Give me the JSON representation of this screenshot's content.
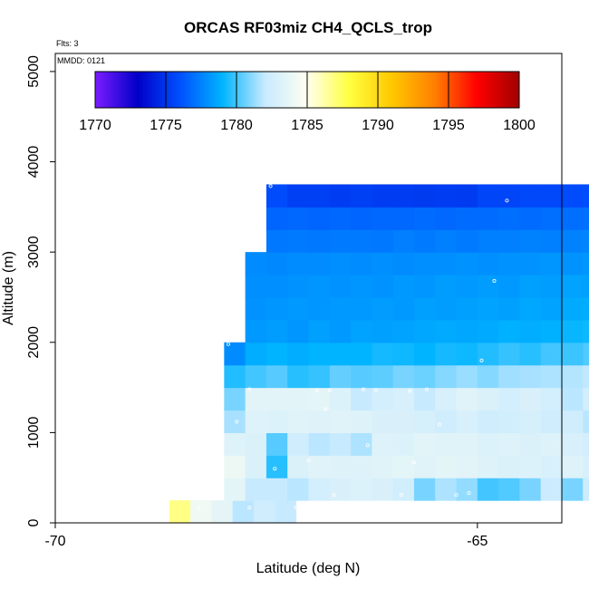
{
  "chart_data": {
    "type": "heatmap",
    "title": "ORCAS RF03miz CH4_QCLS_trop",
    "subtitle": "Flts: 3",
    "inset_label": "MMDD: 0121",
    "xlabel": "Latitude (deg N)",
    "ylabel": "Altitude (m)",
    "xlim": [
      -70,
      -64
    ],
    "ylim": [
      0,
      5200
    ],
    "x_ticks": [
      -70,
      -65
    ],
    "x_tick_labels": [
      "-70",
      "-65"
    ],
    "y_ticks": [
      0,
      1000,
      2000,
      3000,
      4000,
      5000
    ],
    "y_tick_labels": [
      "0",
      "1000",
      "2000",
      "3000",
      "4000",
      "5000"
    ],
    "colorbar": {
      "min": 1770,
      "max": 1800,
      "ticks": [
        1770,
        1775,
        1780,
        1785,
        1790,
        1795,
        1800
      ],
      "tick_labels": [
        "1770",
        "1775",
        "1780",
        "1785",
        "1790",
        "1795",
        "1800"
      ],
      "colors": [
        "#7c1cff",
        "#0000c8",
        "#0050ff",
        "#00b4ff",
        "#c8eaff",
        "#fffff0",
        "#ffff40",
        "#ffc800",
        "#ff8000",
        "#ff0000",
        "#a00000"
      ]
    },
    "cell_height_m": 250,
    "grid": false,
    "rows": [
      {
        "alt": 0,
        "x0": -68.65,
        "dx": 0.25,
        "values": [
          1786.8,
          1784.2,
          1783.6,
          1781.8,
          1782.4,
          1782.0
        ]
      },
      {
        "alt": 250,
        "x0": -68.0,
        "dx": 0.25,
        "values": [
          1783.5,
          1782.0,
          1782.0,
          1781.8,
          1782.6,
          1782.9,
          1783.1,
          1782.9,
          1782.5,
          1780.8,
          1781.6,
          1781.2,
          1780.0,
          1780.2,
          1780.8,
          1782.2,
          1780.8,
          1782.3
        ]
      },
      {
        "alt": 500,
        "x0": -68.0,
        "dx": 0.25,
        "values": [
          1784.0,
          1783.0,
          1779.6,
          1783.0,
          1783.3,
          1783.2,
          1783.2,
          1783.3,
          1783.5,
          1783.3,
          1783.5,
          1783.4,
          1783.2,
          1783.0,
          1783.1,
          1782.8,
          1783.2,
          1782.8
        ]
      },
      {
        "alt": 750,
        "x0": -68.0,
        "dx": 0.25,
        "values": [
          1783.2,
          1783.0,
          1780.3,
          1782.4,
          1781.8,
          1782.0,
          1781.6,
          1783.2,
          1783.1,
          1783.4,
          1783.3,
          1783.3,
          1783.1,
          1783.2,
          1783.0,
          1783.2,
          1782.8,
          1782.6
        ]
      },
      {
        "alt": 1000,
        "x0": -68.0,
        "dx": 0.25,
        "values": [
          1781.5,
          1783.2,
          1783.1,
          1783.3,
          1783.2,
          1783.3,
          1783.2,
          1782.9,
          1782.9,
          1782.7,
          1782.4,
          1782.8,
          1782.4,
          1782.5,
          1782.7,
          1782.4,
          1782.4,
          1781.8,
          1781.5
        ]
      },
      {
        "alt": 1250,
        "x0": -68.0,
        "dx": 0.25,
        "values": [
          1780.8,
          1783.4,
          1783.4,
          1783.4,
          1783.5,
          1783.1,
          1782.0,
          1782.6,
          1782.8,
          1782.0,
          1782.8,
          1783.3,
          1783.0,
          1782.6,
          1782.9,
          1782.6,
          1781.8,
          1782.6,
          1781.6
        ]
      },
      {
        "alt": 1500,
        "x0": -68.0,
        "dx": 0.25,
        "values": [
          1779.5,
          1780.0,
          1780.3,
          1779.6,
          1779.8,
          1780.5,
          1780.3,
          1780.4,
          1780.8,
          1780.6,
          1781.0,
          1781.3,
          1781.0,
          1781.4,
          1781.5,
          1781.6,
          1781.7,
          1781.9,
          1781.5
        ]
      },
      {
        "alt": 1750,
        "x0": -68.0,
        "dx": 0.25,
        "values": [
          1777.8,
          1778.8,
          1779.0,
          1778.8,
          1779.0,
          1779.0,
          1779.0,
          1779.3,
          1779.2,
          1779.0,
          1779.3,
          1779.2,
          1779.5,
          1779.8,
          1779.6,
          1780.0,
          1779.9,
          1780.2,
          1780.5,
          1780.6,
          1780.8
        ]
      },
      {
        "alt": 2000,
        "x0": -67.75,
        "dx": 0.25,
        "values": [
          1778.2,
          1778.3,
          1778.1,
          1778.4,
          1778.2,
          1778.5,
          1778.4,
          1778.5,
          1778.6,
          1778.7,
          1778.6,
          1778.7,
          1778.9,
          1778.8,
          1778.9,
          1779.1,
          1779.2,
          1779.4,
          1779.6
        ]
      },
      {
        "alt": 2250,
        "x0": -67.75,
        "dx": 0.25,
        "values": [
          1778.0,
          1778.1,
          1778.2,
          1778.1,
          1778.2,
          1778.2,
          1778.3,
          1778.2,
          1778.4,
          1778.3,
          1778.4,
          1778.5,
          1778.4,
          1778.6,
          1778.5,
          1778.7,
          1778.8,
          1778.9,
          1779.0
        ]
      },
      {
        "alt": 2500,
        "x0": -67.75,
        "dx": 0.25,
        "values": [
          1777.9,
          1777.9,
          1778.0,
          1778.1,
          1778.0,
          1778.1,
          1778.0,
          1778.2,
          1778.1,
          1778.3,
          1778.2,
          1778.3,
          1778.2,
          1778.4,
          1778.3,
          1778.5,
          1778.4,
          1778.6,
          1778.7
        ]
      },
      {
        "alt": 2750,
        "x0": -67.75,
        "dx": 0.25,
        "values": [
          1777.8,
          1777.7,
          1777.8,
          1777.8,
          1777.9,
          1777.8,
          1777.9,
          1777.8,
          1777.9,
          1777.9,
          1778.0,
          1777.9,
          1778.0,
          1778.0,
          1778.1,
          1778.0,
          1778.1,
          1778.2,
          1778.3
        ]
      },
      {
        "alt": 3000,
        "x0": -67.5,
        "dx": 0.25,
        "values": [
          1777.2,
          1777.3,
          1777.2,
          1777.3,
          1777.3,
          1777.2,
          1777.4,
          1777.3,
          1777.4,
          1777.3,
          1777.4,
          1777.4,
          1777.5,
          1777.4,
          1777.5,
          1777.6
        ]
      },
      {
        "alt": 3250,
        "x0": -67.5,
        "dx": 0.25,
        "values": [
          1776.6,
          1776.7,
          1776.6,
          1776.7,
          1776.6,
          1776.7,
          1776.7,
          1776.8,
          1776.7,
          1776.8,
          1776.8,
          1776.9,
          1776.8,
          1776.9,
          1776.9,
          1777.0
        ]
      },
      {
        "alt": 3500,
        "x0": -67.5,
        "dx": 0.25,
        "values": [
          1775.8,
          1775.4,
          1775.4,
          1775.3,
          1775.4,
          1775.3,
          1775.3,
          1775.2,
          1775.3,
          1775.2,
          1775.6,
          1775.6,
          1775.7,
          1775.7,
          1775.8,
          1775.9,
          1776.0
        ]
      }
    ],
    "flight_points": [
      {
        "lat": -67.45,
        "alt": 3730
      },
      {
        "lat": -64.65,
        "alt": 3570
      },
      {
        "lat": -67.8,
        "alt": 2840
      },
      {
        "lat": -64.8,
        "alt": 2680
      },
      {
        "lat": -67.95,
        "alt": 1980
      },
      {
        "lat": -64.95,
        "alt": 1800
      },
      {
        "lat": -67.7,
        "alt": 1480
      },
      {
        "lat": -66.9,
        "alt": 1470
      },
      {
        "lat": -66.75,
        "alt": 1470
      },
      {
        "lat": -66.35,
        "alt": 1480
      },
      {
        "lat": -66.2,
        "alt": 1470
      },
      {
        "lat": -65.8,
        "alt": 1460
      },
      {
        "lat": -65.6,
        "alt": 1480
      },
      {
        "lat": -66.8,
        "alt": 1260
      },
      {
        "lat": -67.85,
        "alt": 1120
      },
      {
        "lat": -65.45,
        "alt": 1090
      },
      {
        "lat": -66.3,
        "alt": 860
      },
      {
        "lat": -67.0,
        "alt": 690
      },
      {
        "lat": -65.75,
        "alt": 670
      },
      {
        "lat": -67.4,
        "alt": 600
      },
      {
        "lat": -66.7,
        "alt": 310
      },
      {
        "lat": -65.9,
        "alt": 310
      },
      {
        "lat": -65.25,
        "alt": 310
      },
      {
        "lat": -65.1,
        "alt": 330
      },
      {
        "lat": -68.3,
        "alt": 170
      },
      {
        "lat": -67.7,
        "alt": 170
      },
      {
        "lat": -67.15,
        "alt": 170
      },
      {
        "lat": -67.05,
        "alt": 170
      }
    ]
  }
}
